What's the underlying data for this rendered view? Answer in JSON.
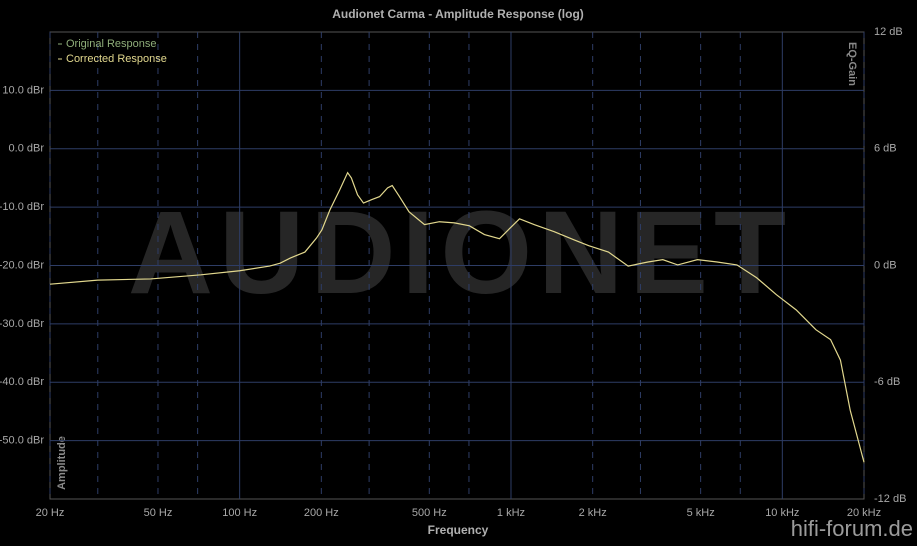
{
  "chart_data": {
    "type": "line",
    "title": "Audionet Carma - Amplitude Response (log)",
    "xlabel": "Frequency",
    "ylabel": "Amplitude",
    "y2label": "EQ-Gain",
    "watermark": "AUDIONET",
    "credit": "hifi-forum.de",
    "xscale": "log",
    "xlim": [
      20,
      20000
    ],
    "xticks": [
      {
        "value": 20,
        "label": "20 Hz"
      },
      {
        "value": 50,
        "label": "50 Hz"
      },
      {
        "value": 100,
        "label": "100 Hz"
      },
      {
        "value": 200,
        "label": "200 Hz"
      },
      {
        "value": 500,
        "label": "500 Hz"
      },
      {
        "value": 1000,
        "label": "1 kHz"
      },
      {
        "value": 2000,
        "label": "2 kHz"
      },
      {
        "value": 5000,
        "label": "5 kHz"
      },
      {
        "value": 10000,
        "label": "10 kHz"
      },
      {
        "value": 20000,
        "label": "20 kHz"
      }
    ],
    "xminorticks": [
      30,
      70,
      300,
      700,
      3000,
      7000
    ],
    "ylim": [
      -60,
      20
    ],
    "yticks": [
      {
        "value": -50,
        "label": "-50.0 dBr"
      },
      {
        "value": -40,
        "label": "-40.0 dBr"
      },
      {
        "value": -30,
        "label": "-30.0 dBr"
      },
      {
        "value": -20,
        "label": "-20.0 dBr"
      },
      {
        "value": -10,
        "label": "-10.0 dBr"
      },
      {
        "value": 0,
        "label": "0.0 dBr"
      },
      {
        "value": 10,
        "label": "10.0 dBr"
      }
    ],
    "y2lim": [
      -12,
      12
    ],
    "y2ticks": [
      {
        "value": -12,
        "label": "-12 dB"
      },
      {
        "value": -6,
        "label": "-6 dB"
      },
      {
        "value": 0,
        "label": "0 dB"
      },
      {
        "value": 6,
        "label": "6 dB"
      },
      {
        "value": 12,
        "label": "12 dB"
      }
    ],
    "grid": true,
    "legend": "upper left",
    "x": [
      20,
      30,
      47,
      72,
      100,
      129,
      141,
      154,
      174,
      192,
      201,
      215,
      234,
      250,
      258,
      272,
      286,
      307,
      328,
      351,
      365,
      387,
      421,
      480,
      545,
      619,
      703,
      798,
      907,
      987,
      1075,
      1220,
      1443,
      1706,
      1935,
      2286,
      2703,
      3196,
      3627,
      4115,
      4866,
      5753,
      6802,
      8043,
      9510,
      11245,
      13296,
      15063,
      16371,
      17792,
      20000
    ],
    "series": [
      {
        "name": "Original Response",
        "color": "#8fae7a",
        "values": [
          null,
          null,
          null,
          null,
          null,
          null,
          null,
          null,
          null,
          null,
          null,
          null,
          null,
          null,
          null,
          null,
          null,
          null,
          null,
          null,
          null,
          null,
          null,
          null,
          null,
          null,
          null,
          null,
          null,
          null,
          null,
          null,
          null,
          null,
          null,
          null,
          null,
          null,
          null,
          null,
          null,
          null,
          null,
          null,
          null,
          null,
          null,
          null,
          null,
          null,
          null
        ]
      },
      {
        "name": "Corrected Response",
        "color": "#e2d88e",
        "values": [
          -23.2,
          -22.5,
          -22.3,
          -21.6,
          -20.9,
          -20.1,
          -19.6,
          -18.7,
          -17.7,
          -15.3,
          -13.9,
          -10.5,
          -7.0,
          -4.1,
          -5.0,
          -7.9,
          -9.3,
          -8.7,
          -8.2,
          -6.7,
          -6.3,
          -8.1,
          -10.8,
          -13.0,
          -12.5,
          -12.7,
          -13.2,
          -14.7,
          -15.4,
          -13.7,
          -12.0,
          -13.0,
          -14.2,
          -15.6,
          -16.6,
          -17.7,
          -20.1,
          -19.4,
          -19.0,
          -19.9,
          -19.0,
          -19.4,
          -19.9,
          -22.1,
          -25.0,
          -27.6,
          -31.0,
          -32.7,
          -36.2,
          -44.8,
          -53.7
        ]
      }
    ]
  }
}
